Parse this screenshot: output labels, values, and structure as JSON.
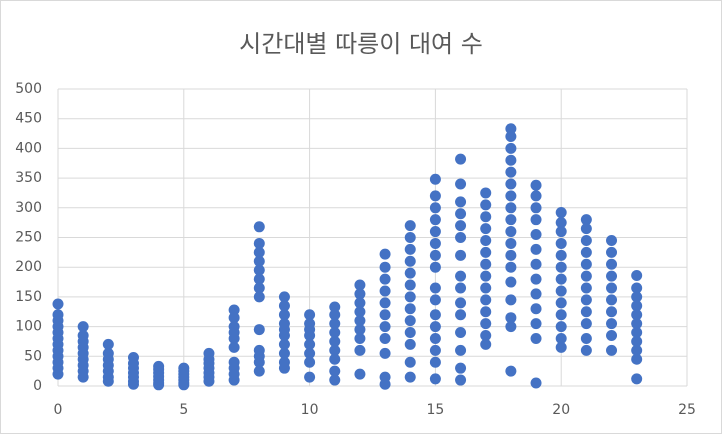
{
  "chart_data": {
    "type": "scatter",
    "title": "시간대별 따릉이 대여 수",
    "color": "#4472c4",
    "grid": true,
    "xlim": [
      0,
      25
    ],
    "xticks": [
      0,
      5,
      10,
      15,
      20,
      25
    ],
    "ylim": [
      0,
      500
    ],
    "yticks": [
      0,
      50,
      100,
      150,
      200,
      250,
      300,
      350,
      400,
      450,
      500
    ],
    "x": [
      0,
      0,
      0,
      0,
      0,
      0,
      0,
      0,
      0,
      0,
      0,
      0,
      1,
      1,
      1,
      1,
      1,
      1,
      1,
      1,
      1,
      2,
      2,
      2,
      2,
      2,
      2,
      2,
      3,
      3,
      3,
      3,
      3,
      3,
      3,
      4,
      4,
      4,
      4,
      4,
      4,
      4,
      5,
      5,
      5,
      5,
      5,
      5,
      5,
      6,
      6,
      6,
      6,
      6,
      6,
      6,
      7,
      7,
      7,
      7,
      7,
      7,
      7,
      7,
      7,
      7,
      8,
      8,
      8,
      8,
      8,
      8,
      8,
      8,
      8,
      8,
      8,
      8,
      8,
      9,
      9,
      9,
      9,
      9,
      9,
      9,
      9,
      9,
      9,
      10,
      10,
      10,
      10,
      10,
      10,
      10,
      10,
      11,
      11,
      11,
      11,
      11,
      11,
      11,
      11,
      11,
      12,
      12,
      12,
      12,
      12,
      12,
      12,
      12,
      12,
      13,
      13,
      13,
      13,
      13,
      13,
      13,
      13,
      13,
      13,
      13,
      14,
      14,
      14,
      14,
      14,
      14,
      14,
      14,
      14,
      14,
      14,
      14,
      14,
      15,
      15,
      15,
      15,
      15,
      15,
      15,
      15,
      15,
      15,
      15,
      15,
      15,
      15,
      15,
      15,
      16,
      16,
      16,
      16,
      16,
      16,
      16,
      16,
      16,
      16,
      16,
      16,
      16,
      16,
      16,
      17,
      17,
      17,
      17,
      17,
      17,
      17,
      17,
      17,
      17,
      17,
      17,
      17,
      17,
      18,
      18,
      18,
      18,
      18,
      18,
      18,
      18,
      18,
      18,
      18,
      18,
      18,
      18,
      18,
      18,
      18,
      18,
      19,
      19,
      19,
      19,
      19,
      19,
      19,
      19,
      19,
      19,
      19,
      19,
      19,
      20,
      20,
      20,
      20,
      20,
      20,
      20,
      20,
      20,
      20,
      20,
      20,
      20,
      21,
      21,
      21,
      21,
      21,
      21,
      21,
      21,
      21,
      21,
      21,
      21,
      22,
      22,
      22,
      22,
      22,
      22,
      22,
      22,
      22,
      22,
      23,
      23,
      23,
      23,
      23,
      23,
      23,
      23,
      23,
      23,
      23
    ],
    "values": [
      138,
      120,
      110,
      100,
      90,
      80,
      70,
      60,
      50,
      40,
      30,
      20,
      100,
      85,
      75,
      65,
      55,
      45,
      35,
      25,
      15,
      70,
      55,
      45,
      35,
      25,
      15,
      8,
      48,
      38,
      30,
      22,
      15,
      8,
      3,
      33,
      28,
      22,
      16,
      10,
      5,
      2,
      30,
      25,
      20,
      15,
      10,
      5,
      2,
      55,
      45,
      38,
      30,
      22,
      15,
      8,
      128,
      115,
      100,
      90,
      80,
      65,
      40,
      30,
      20,
      10,
      268,
      240,
      225,
      210,
      195,
      180,
      165,
      150,
      95,
      60,
      50,
      40,
      25,
      150,
      135,
      120,
      105,
      95,
      85,
      70,
      55,
      40,
      30,
      120,
      105,
      95,
      85,
      70,
      55,
      40,
      15,
      133,
      120,
      105,
      90,
      75,
      60,
      45,
      25,
      10,
      170,
      155,
      140,
      125,
      110,
      95,
      80,
      60,
      20,
      222,
      200,
      180,
      160,
      140,
      120,
      100,
      80,
      55,
      15,
      3,
      270,
      250,
      230,
      210,
      190,
      170,
      150,
      130,
      110,
      90,
      70,
      40,
      15,
      348,
      320,
      300,
      280,
      260,
      240,
      220,
      200,
      165,
      145,
      120,
      100,
      80,
      60,
      40,
      12,
      382,
      340,
      310,
      290,
      270,
      250,
      220,
      185,
      165,
      140,
      120,
      90,
      60,
      30,
      10,
      325,
      305,
      285,
      265,
      245,
      225,
      205,
      185,
      165,
      145,
      125,
      105,
      85,
      70,
      433,
      420,
      400,
      380,
      360,
      340,
      320,
      300,
      280,
      260,
      240,
      220,
      200,
      175,
      145,
      115,
      100,
      25,
      338,
      320,
      300,
      280,
      255,
      230,
      205,
      180,
      155,
      130,
      105,
      80,
      5,
      292,
      275,
      260,
      240,
      220,
      200,
      180,
      160,
      140,
      120,
      100,
      80,
      65,
      280,
      265,
      245,
      225,
      205,
      185,
      165,
      145,
      125,
      105,
      80,
      60,
      245,
      225,
      205,
      185,
      165,
      145,
      125,
      105,
      85,
      60,
      186,
      165,
      150,
      135,
      120,
      105,
      90,
      75,
      60,
      45,
      12
    ]
  }
}
